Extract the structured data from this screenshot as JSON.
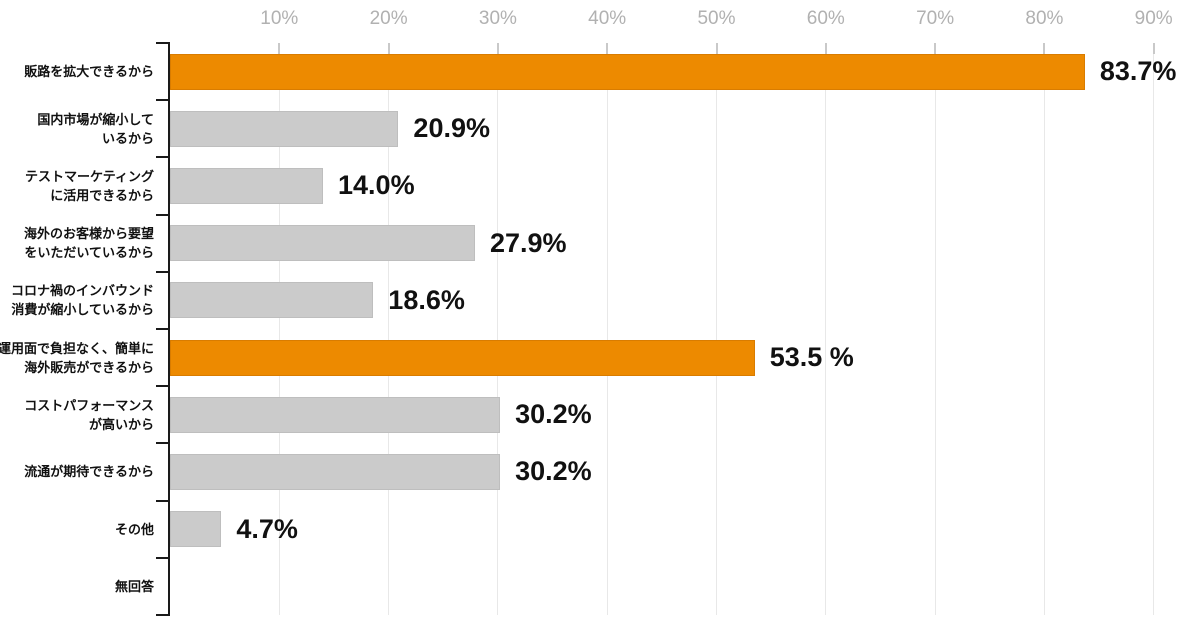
{
  "chart_data": {
    "type": "bar",
    "orientation": "horizontal",
    "title": "",
    "x_axis": {
      "position": "top",
      "range": [
        0,
        90
      ],
      "tick_values": [
        10,
        20,
        30,
        40,
        50,
        60,
        70,
        80,
        90
      ],
      "tick_labels": [
        "10%",
        "20%",
        "30%",
        "40%",
        "50%",
        "60%",
        "70%",
        "80%",
        "90%"
      ],
      "grid": true
    },
    "categories": [
      {
        "label_lines": [
          "販路を拡大できるから"
        ],
        "value": 83.7,
        "value_label": "83.7%",
        "color_role": "highlight"
      },
      {
        "label_lines": [
          "国内市場が縮小して",
          "いるから"
        ],
        "value": 20.9,
        "value_label": "20.9%",
        "color_role": "default"
      },
      {
        "label_lines": [
          "テストマーケティング",
          "に活用できるから"
        ],
        "value": 14.0,
        "value_label": "14.0%",
        "color_role": "default"
      },
      {
        "label_lines": [
          "海外のお客様から要望",
          "をいただいているから"
        ],
        "value": 27.9,
        "value_label": "27.9%",
        "color_role": "default"
      },
      {
        "label_lines": [
          "コロナ禍のインバウンド",
          "消費が縮小しているから"
        ],
        "value": 18.6,
        "value_label": "18.6%",
        "color_role": "default"
      },
      {
        "label_lines": [
          "運用面で負担なく、簡単に",
          "海外販売ができるから"
        ],
        "value": 53.5,
        "value_label": "53.5 %",
        "color_role": "highlight"
      },
      {
        "label_lines": [
          "コストパフォーマンス",
          "が高いから"
        ],
        "value": 30.2,
        "value_label": "30.2%",
        "color_role": "default"
      },
      {
        "label_lines": [
          "流通が期待できるから"
        ],
        "value": 30.2,
        "value_label": "30.2%",
        "color_role": "default"
      },
      {
        "label_lines": [
          "その他"
        ],
        "value": 4.7,
        "value_label": "4.7%",
        "color_role": "default"
      },
      {
        "label_lines": [
          "無回答"
        ],
        "value": 0,
        "value_label": "",
        "color_role": "default"
      }
    ],
    "legend": null,
    "colors": {
      "highlight": "#ED8A00",
      "highlight_border": "#D97C00",
      "default": "#CBCBCB",
      "default_border": "#BEBEBE",
      "axis_text": "#B1B1B1",
      "gridline": "#E8E8E8",
      "tick_stub": "#C9C9C9",
      "axis_line": "#1A1A1A",
      "value_text": "#111111"
    }
  }
}
